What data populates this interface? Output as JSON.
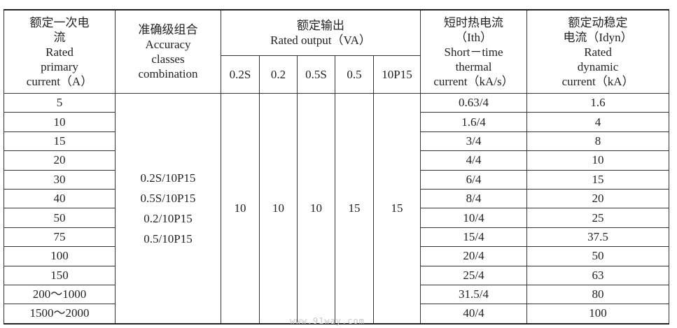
{
  "headers": {
    "rated_primary_current": [
      "额定一次电",
      "流",
      "Rated",
      "primary",
      "current（A）"
    ],
    "accuracy_classes": [
      "准确级组合",
      "Accuracy",
      "classes",
      "combination"
    ],
    "rated_output": [
      "额定输出",
      "Rated output（VA）"
    ],
    "output_subcolumns": [
      "0.2S",
      "0.2",
      "0.5S",
      "0.5",
      "10P15"
    ],
    "short_time_thermal": [
      "短时热电流",
      "（Ith）",
      "Short－time",
      "thermal",
      "current（kA/s）"
    ],
    "rated_dynamic": [
      "额定动稳定",
      "电流（Idyn）",
      "Rated",
      "dynamic",
      "current（kA）"
    ]
  },
  "accuracy_combinations": [
    "0.2S/10P15",
    "0.5S/10P15",
    "0.2/10P15",
    "0.5/10P15"
  ],
  "rated_outputs": [
    "10",
    "10",
    "10",
    "15",
    "15"
  ],
  "rows": [
    {
      "current": "5",
      "thermal": "0.63/4",
      "dynamic": "1.6"
    },
    {
      "current": "10",
      "thermal": "1.6/4",
      "dynamic": "4"
    },
    {
      "current": "15",
      "thermal": "3/4",
      "dynamic": "8"
    },
    {
      "current": "20",
      "thermal": "4/4",
      "dynamic": "10"
    },
    {
      "current": "30",
      "thermal": "6/4",
      "dynamic": "15"
    },
    {
      "current": "40",
      "thermal": "8/4",
      "dynamic": "20"
    },
    {
      "current": "50",
      "thermal": "10/4",
      "dynamic": "25"
    },
    {
      "current": "75",
      "thermal": "15/4",
      "dynamic": "37.5"
    },
    {
      "current": "100",
      "thermal": "20/4",
      "dynamic": "50"
    },
    {
      "current": "150",
      "thermal": "25/4",
      "dynamic": "63"
    },
    {
      "current": "200～1000",
      "thermal": "31.5/4",
      "dynamic": "80"
    },
    {
      "current": "1500～2000",
      "thermal": "40/4",
      "dynamic": "100"
    }
  ],
  "watermark": "www.91way.com"
}
